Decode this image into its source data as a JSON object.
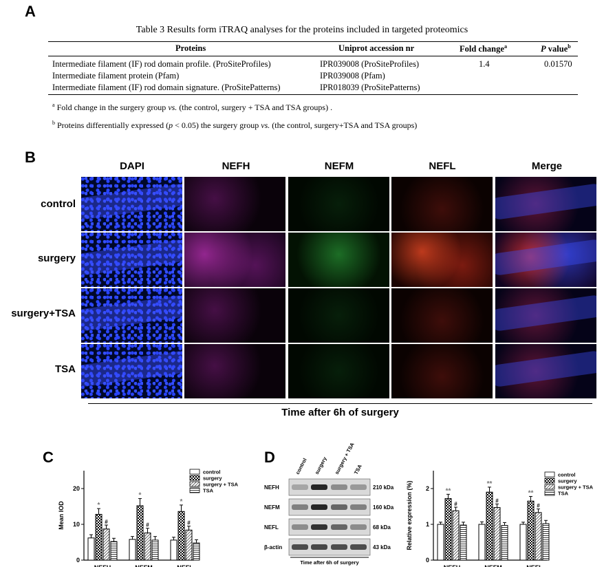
{
  "panels": {
    "a": "A",
    "b": "B",
    "c": "C",
    "d": "D"
  },
  "table": {
    "title": "Table 3 Results form iTRAQ analyses for the proteins included in targeted proteomics",
    "headers": {
      "proteins": "Proteins",
      "uniprot": "Uniprot accession nr",
      "fold": "Fold change",
      "fold_sup": "a",
      "pvalue": "P",
      "pvalue_rest": " value",
      "pvalue_sup": "b"
    },
    "rows": [
      {
        "protein": "Intermediate filament (IF) rod domain profile. (ProSiteProfiles)",
        "uniprot": "IPR039008 (ProSiteProfiles)",
        "fold": "1.4",
        "p": "0.01570"
      },
      {
        "protein": "Intermediate filament protein (Pfam)",
        "uniprot": "IPR039008 (Pfam)",
        "fold": "",
        "p": ""
      },
      {
        "protein": "Intermediate filament (IF) rod domain signature. (ProSitePatterns)",
        "uniprot": "IPR018039 (ProSitePatterns)",
        "fold": "",
        "p": ""
      }
    ],
    "notes": {
      "a_sup": "a",
      "a_text": " Fold change in the surgery group ",
      "a_vs": "vs.",
      "a_tail": " (the control, surgery + TSA and TSA groups) .",
      "b_sup": "b",
      "b_text": " Proteins differentially expressed (",
      "b_p": "p",
      "b_mid": "  < 0.05) the surgery group ",
      "b_vs": "vs.",
      "b_tail": " (the control, surgery+TSA and TSA groups)"
    }
  },
  "micro": {
    "columns": [
      "DAPI",
      "NEFH",
      "NEFM",
      "NEFL",
      "Merge"
    ],
    "rows": [
      "control",
      "surgery",
      "surgery+TSA",
      "TSA"
    ],
    "caption": "Time after 6h of surgery"
  },
  "chart_data": [
    {
      "type": "bar",
      "panel": "C",
      "categories": [
        "NEFH",
        "NEFM",
        "NEFL"
      ],
      "ylabel": "Mean IOD",
      "ylim": [
        0,
        25
      ],
      "yticks": [
        0,
        10,
        20
      ],
      "series": [
        {
          "name": "control",
          "values": [
            6.2,
            5.8,
            5.6
          ],
          "errors": [
            0.9,
            0.8,
            0.8
          ]
        },
        {
          "name": "surgery",
          "values": [
            12.8,
            15.2,
            13.6
          ],
          "errors": [
            1.6,
            2.0,
            1.8
          ]
        },
        {
          "name": "surgery + TSA",
          "values": [
            8.7,
            7.6,
            8.4
          ],
          "errors": [
            1.1,
            1.3,
            1.1
          ]
        },
        {
          "name": "TSA",
          "values": [
            5.2,
            5.6,
            4.8
          ],
          "errors": [
            0.9,
            1.0,
            0.9
          ]
        }
      ],
      "annotations": [
        {
          "category": "NEFH",
          "series": "surgery",
          "text": "*"
        },
        {
          "category": "NEFH",
          "series": "surgery + TSA",
          "text": "#"
        },
        {
          "category": "NEFM",
          "series": "surgery",
          "text": "*"
        },
        {
          "category": "NEFM",
          "series": "surgery + TSA",
          "text": "#"
        },
        {
          "category": "NEFL",
          "series": "surgery",
          "text": "*"
        },
        {
          "category": "NEFL",
          "series": "surgery + TSA",
          "text": "#"
        }
      ],
      "legend": "top-right"
    },
    {
      "type": "bar",
      "panel": "D",
      "categories": [
        "NEFH",
        "NEFM",
        "NEFL"
      ],
      "ylabel": "Relative expression (%)",
      "ylim": [
        0,
        2.5
      ],
      "yticks": [
        0,
        1,
        2
      ],
      "series": [
        {
          "name": "control",
          "values": [
            1.0,
            1.0,
            1.0
          ],
          "errors": [
            0.06,
            0.07,
            0.06
          ]
        },
        {
          "name": "surgery",
          "values": [
            1.72,
            1.9,
            1.65
          ],
          "errors": [
            0.12,
            0.14,
            0.13
          ]
        },
        {
          "name": "surgery + TSA",
          "values": [
            1.38,
            1.47,
            1.33
          ],
          "errors": [
            0.1,
            0.1,
            0.1
          ]
        },
        {
          "name": "TSA",
          "values": [
            0.98,
            0.97,
            1.02
          ],
          "errors": [
            0.08,
            0.08,
            0.09
          ]
        }
      ],
      "annotations": [
        {
          "category": "NEFH",
          "series": "surgery",
          "text": "**"
        },
        {
          "category": "NEFH",
          "series": "surgery + TSA",
          "text": "#"
        },
        {
          "category": "NEFM",
          "series": "surgery",
          "text": "**"
        },
        {
          "category": "NEFM",
          "series": "surgery + TSA",
          "text": "#"
        },
        {
          "category": "NEFL",
          "series": "surgery",
          "text": "**"
        },
        {
          "category": "NEFL",
          "series": "surgery + TSA",
          "text": "#"
        }
      ],
      "legend": "top-right"
    }
  ],
  "blot": {
    "lanes": [
      "control",
      "surgery",
      "surgery + TSA",
      "TSA"
    ],
    "bands": [
      {
        "name": "NEFH",
        "size": "210 kDa"
      },
      {
        "name": "NEFM",
        "size": "160 kDa"
      },
      {
        "name": "NEFL",
        "size": "68 kDa"
      },
      {
        "name": "β-actin",
        "size": "43 kDa"
      }
    ],
    "caption": "Time after 6h of surgery"
  }
}
